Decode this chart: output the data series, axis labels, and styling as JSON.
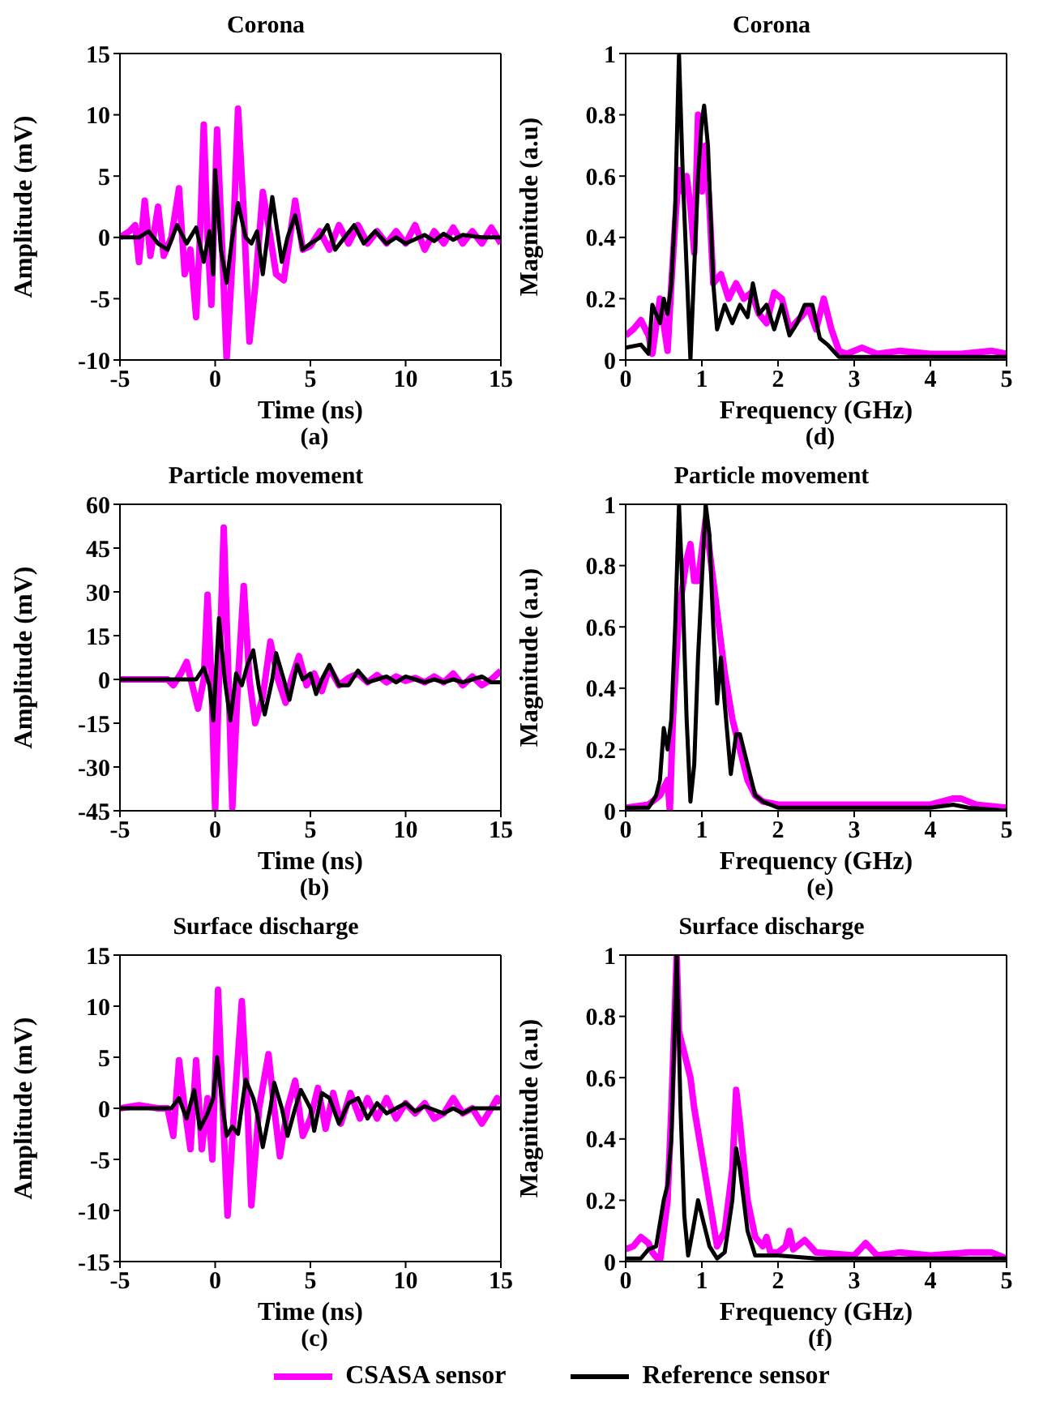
{
  "chart_data": [
    {
      "type": "line",
      "title": "Corona",
      "xlabel": "Time (ns)",
      "ylabel": "Amplitude (mV)",
      "annotations": [
        "(a)"
      ],
      "xlim": [
        -5,
        15
      ],
      "xticks": [
        -5,
        0,
        5,
        10,
        15
      ],
      "ylim": [
        -10,
        15
      ],
      "yticks": [
        -10,
        -5,
        0,
        5,
        10,
        15
      ],
      "legend": "bottom",
      "series": [
        {
          "name": "CSASA sensor",
          "color": "#ff00ff",
          "x": [
            -5,
            -4.5,
            -4.2,
            -4,
            -3.7,
            -3.4,
            -3,
            -2.7,
            -2.3,
            -1.9,
            -1.6,
            -1.3,
            -1,
            -0.8,
            -0.6,
            -0.4,
            -0.2,
            0.1,
            0.4,
            0.6,
            0.9,
            1.2,
            1.5,
            1.8,
            2.1,
            2.5,
            2.9,
            3.2,
            3.6,
            4.2,
            4.6,
            5,
            5.5,
            6,
            6.5,
            7,
            7.5,
            8,
            8.5,
            9,
            9.5,
            10,
            10.5,
            11,
            11.5,
            12,
            12.5,
            13,
            13.5,
            14,
            14.5,
            15
          ],
          "values": [
            0,
            0.5,
            1,
            -2,
            3,
            -1.5,
            2.5,
            -1.5,
            0,
            4,
            -3,
            -1,
            -6.5,
            0,
            9.2,
            0,
            -5.5,
            8.8,
            -2,
            -10,
            -2,
            10.5,
            2,
            -8.5,
            -4,
            3.7,
            0,
            -3,
            -3.5,
            3,
            -1,
            -0.7,
            0.5,
            -1,
            1,
            -0.5,
            1,
            -0.5,
            0.5,
            -0.5,
            0.5,
            -0.5,
            1,
            -1,
            0.5,
            -0.5,
            0.8,
            -0.5,
            0.5,
            -0.5,
            0.8,
            -0.5
          ]
        },
        {
          "name": "Reference sensor",
          "color": "#000000",
          "x": [
            -5,
            -4,
            -3.5,
            -3,
            -2.5,
            -2,
            -1.5,
            -1,
            -0.6,
            -0.3,
            -0.1,
            0,
            0.3,
            0.6,
            0.9,
            1.2,
            1.6,
            1.9,
            2.2,
            2.5,
            3,
            3.5,
            3.8,
            4.2,
            4.6,
            5,
            5.5,
            5.9,
            6.3,
            6.8,
            7.3,
            7.8,
            8.4,
            9,
            9.5,
            10,
            11,
            11.5,
            12,
            12.5,
            13,
            14,
            15
          ],
          "values": [
            0,
            0,
            0.5,
            -0.5,
            -1,
            1,
            -0.5,
            0.8,
            -2,
            0.5,
            -3,
            5.5,
            -1,
            -3.7,
            0,
            2.8,
            0,
            -0.5,
            0.5,
            -3,
            3.3,
            -2,
            0,
            1.8,
            -1,
            -0.5,
            0,
            1,
            -1,
            0,
            1,
            -0.5,
            0.5,
            -0.5,
            0,
            -0.5,
            0.2,
            -0.3,
            0.3,
            -0.2,
            0.2,
            0,
            0
          ]
        }
      ]
    },
    {
      "type": "line",
      "title": "Corona",
      "xlabel": "Frequency (GHz)",
      "ylabel": "Magnitude (a.u)",
      "annotations": [
        "(d)"
      ],
      "xlim": [
        0,
        5
      ],
      "xticks": [
        0,
        1,
        2,
        3,
        4,
        5
      ],
      "ylim": [
        0,
        1
      ],
      "yticks": [
        0,
        0.2,
        0.4,
        0.6,
        0.8,
        1
      ],
      "series": [
        {
          "color": "#ff00ff",
          "x": [
            0,
            0.1,
            0.2,
            0.3,
            0.35,
            0.45,
            0.55,
            0.6,
            0.65,
            0.7,
            0.75,
            0.8,
            0.85,
            0.9,
            0.95,
            1,
            1.05,
            1.1,
            1.15,
            1.25,
            1.35,
            1.45,
            1.55,
            1.65,
            1.75,
            1.85,
            1.95,
            2.05,
            2.15,
            2.3,
            2.4,
            2.5,
            2.6,
            2.7,
            2.8,
            2.9,
            3.1,
            3.3,
            3.6,
            4,
            4.4,
            4.8,
            5
          ],
          "values": [
            0.08,
            0.1,
            0.13,
            0.08,
            0.02,
            0.2,
            0.03,
            0.25,
            0.45,
            0.62,
            0.55,
            0.6,
            0.5,
            0.35,
            0.8,
            0.55,
            0.7,
            0.5,
            0.25,
            0.28,
            0.2,
            0.25,
            0.2,
            0.22,
            0.15,
            0.12,
            0.22,
            0.2,
            0.1,
            0.14,
            0.17,
            0.1,
            0.2,
            0.1,
            0.03,
            0.02,
            0.04,
            0.02,
            0.03,
            0.02,
            0.02,
            0.03,
            0.02
          ]
        },
        {
          "color": "#000000",
          "x": [
            0,
            0.2,
            0.3,
            0.35,
            0.45,
            0.5,
            0.55,
            0.6,
            0.65,
            0.7,
            0.75,
            0.8,
            0.85,
            0.9,
            0.95,
            1,
            1.03,
            1.08,
            1.15,
            1.2,
            1.3,
            1.4,
            1.5,
            1.6,
            1.67,
            1.75,
            1.85,
            1.95,
            2.05,
            2.15,
            2.25,
            2.35,
            2.45,
            2.55,
            2.65,
            2.8,
            3,
            3.5,
            4,
            4.5,
            5
          ],
          "values": [
            0.04,
            0.05,
            0.02,
            0.18,
            0.12,
            0.2,
            0.15,
            0.25,
            0.5,
            1,
            0.6,
            0.3,
            0,
            0.3,
            0.6,
            0.78,
            0.83,
            0.7,
            0.25,
            0.1,
            0.18,
            0.12,
            0.18,
            0.14,
            0.25,
            0.15,
            0.18,
            0.1,
            0.18,
            0.08,
            0.12,
            0.18,
            0.18,
            0.07,
            0.05,
            0.01,
            0.01,
            0.01,
            0.01,
            0.01,
            0.01
          ]
        }
      ]
    },
    {
      "type": "line",
      "title": "Particle movement",
      "xlabel": "Time (ns)",
      "ylabel": "Amplitude (mV)",
      "annotations": [
        "(b)"
      ],
      "xlim": [
        -5,
        15
      ],
      "xticks": [
        -5,
        0,
        5,
        10,
        15
      ],
      "ylim": [
        -45,
        60
      ],
      "yticks": [
        -45,
        -30,
        -15,
        0,
        15,
        30,
        45,
        60
      ],
      "series": [
        {
          "color": "#ff00ff",
          "x": [
            -5,
            -2.5,
            -2.2,
            -1.8,
            -1.5,
            -1.2,
            -0.9,
            -0.6,
            -0.4,
            -0.2,
            0,
            0.2,
            0.45,
            0.7,
            0.9,
            1.2,
            1.5,
            1.8,
            2.1,
            2.5,
            2.9,
            3.3,
            3.7,
            4,
            4.4,
            4.8,
            5.2,
            5.6,
            6,
            6.5,
            7,
            7.5,
            8,
            8.5,
            9,
            9.5,
            10,
            10.5,
            11,
            11.5,
            12,
            12.5,
            13,
            13.5,
            14,
            14.5,
            15
          ],
          "values": [
            0,
            0,
            -2,
            2,
            6,
            -2,
            -10,
            0,
            29,
            0,
            -45,
            0,
            52,
            0,
            -44,
            0,
            32,
            0,
            -15,
            -6,
            13,
            0,
            -8,
            0,
            8,
            -2,
            2,
            -4,
            4,
            -2,
            0.5,
            2,
            -1,
            1.5,
            -1,
            1,
            -0.5,
            0.5,
            -1,
            1,
            -1,
            2,
            -2,
            1,
            -2,
            0,
            3
          ]
        },
        {
          "color": "#000000",
          "x": [
            -5,
            -1,
            -0.6,
            -0.3,
            -0.1,
            0.2,
            0.5,
            0.8,
            1.1,
            1.4,
            1.7,
            2,
            2.3,
            2.6,
            3,
            3.2,
            3.6,
            3.9,
            4.3,
            4.6,
            5,
            5.3,
            5.6,
            6,
            6.5,
            7,
            7.5,
            8,
            8.5,
            9,
            9.5,
            10,
            10.5,
            11,
            11.5,
            12,
            12.5,
            13,
            13.5,
            14,
            14.5,
            15
          ],
          "values": [
            0,
            0,
            4,
            -2,
            -14,
            21,
            0,
            -14,
            2,
            -2,
            5,
            10,
            -3,
            -12,
            0,
            9,
            0,
            -7,
            5,
            0,
            2,
            -5,
            0,
            5,
            -2,
            -2,
            3,
            -1,
            0,
            1,
            -1,
            1,
            0,
            -1,
            0,
            -1,
            0,
            -1,
            0,
            1,
            -1,
            -1
          ]
        }
      ]
    },
    {
      "type": "line",
      "title": "Particle movement",
      "xlabel": "Frequency (GHz)",
      "ylabel": "Magnitude (a.u)",
      "annotations": [
        "(e)"
      ],
      "xlim": [
        0,
        5
      ],
      "xticks": [
        0,
        1,
        2,
        3,
        4,
        5
      ],
      "ylim": [
        0,
        1
      ],
      "yticks": [
        0,
        0.2,
        0.4,
        0.6,
        0.8,
        1
      ],
      "series": [
        {
          "color": "#ff00ff",
          "x": [
            0,
            0.3,
            0.45,
            0.55,
            0.58,
            0.62,
            0.7,
            0.8,
            0.85,
            0.9,
            0.95,
            1.05,
            1.1,
            1.2,
            1.3,
            1.4,
            1.5,
            1.6,
            1.7,
            1.8,
            2,
            2.5,
            3,
            3.5,
            4,
            4.3,
            4.4,
            4.6,
            5
          ],
          "values": [
            0.01,
            0.02,
            0.05,
            0.1,
            0,
            0.3,
            0.65,
            0.82,
            0.87,
            0.75,
            0.75,
            0.95,
            0.85,
            0.65,
            0.45,
            0.3,
            0.2,
            0.1,
            0.05,
            0.03,
            0.02,
            0.02,
            0.02,
            0.02,
            0.02,
            0.04,
            0.04,
            0.02,
            0.01
          ]
        },
        {
          "color": "#000000",
          "x": [
            0,
            0.3,
            0.4,
            0.45,
            0.5,
            0.55,
            0.6,
            0.65,
            0.7,
            0.75,
            0.8,
            0.85,
            0.9,
            0.95,
            1,
            1.05,
            1.1,
            1.15,
            1.2,
            1.25,
            1.3,
            1.38,
            1.45,
            1.5,
            1.6,
            1.7,
            1.8,
            2,
            2.5,
            3,
            3.5,
            4,
            4.3,
            4.5,
            5
          ],
          "values": [
            0.01,
            0.01,
            0.05,
            0.1,
            0.27,
            0.2,
            0.3,
            0.6,
            1,
            0.7,
            0.3,
            0.03,
            0.15,
            0.5,
            0.75,
            1,
            0.9,
            0.6,
            0.35,
            0.5,
            0.35,
            0.12,
            0.25,
            0.25,
            0.15,
            0.05,
            0.03,
            0.01,
            0.01,
            0.01,
            0.01,
            0.01,
            0.02,
            0.01,
            0
          ]
        }
      ]
    },
    {
      "type": "line",
      "title": "Surface discharge",
      "xlabel": "Time (ns)",
      "ylabel": "Amplitude (mV)",
      "annotations": [
        "(c)"
      ],
      "xlim": [
        -5,
        15
      ],
      "xticks": [
        -5,
        0,
        5,
        10,
        15
      ],
      "ylim": [
        -15,
        15
      ],
      "yticks": [
        -15,
        -10,
        -5,
        0,
        5,
        10,
        15
      ],
      "series": [
        {
          "color": "#ff00ff",
          "x": [
            -5,
            -4,
            -3,
            -2.5,
            -2.2,
            -1.9,
            -1.6,
            -1.3,
            -1,
            -0.7,
            -0.4,
            -0.15,
            0.15,
            0.4,
            0.65,
            1,
            1.4,
            1.7,
            1.9,
            2.3,
            2.8,
            3.1,
            3.4,
            3.8,
            4.2,
            4.6,
            5,
            5.4,
            5.8,
            6.2,
            6.6,
            7.1,
            7.6,
            8,
            8.5,
            9,
            9.5,
            10,
            10.5,
            11,
            11.5,
            12,
            12.5,
            13,
            13.5,
            14,
            14.5,
            14.8,
            15
          ],
          "values": [
            0,
            0.3,
            0,
            0,
            -2.7,
            4.7,
            0,
            -4,
            4.7,
            -4,
            1,
            -5,
            11.6,
            0,
            -10.5,
            0,
            10.5,
            0,
            -9.5,
            0,
            5.3,
            0,
            -4.7,
            0,
            2.7,
            -2.7,
            -1,
            2,
            -2,
            1.5,
            -1.5,
            1.5,
            -1,
            1,
            -1,
            1,
            -1,
            0.5,
            -0.5,
            0.5,
            -1,
            -0.5,
            1,
            -0.5,
            0,
            -1.5,
            0,
            1,
            0.5
          ]
        },
        {
          "color": "#000000",
          "x": [
            -5,
            -3,
            -2.3,
            -1.9,
            -1.5,
            -1.1,
            -0.8,
            -0.4,
            -0.1,
            0.1,
            0.4,
            0.6,
            0.9,
            1.2,
            1.6,
            2,
            2.2,
            2.5,
            2.9,
            3.1,
            3.5,
            3.8,
            4.2,
            4.5,
            5,
            5.2,
            5.6,
            6,
            6.5,
            7,
            7.5,
            8,
            8.5,
            9,
            9.5,
            10,
            10.5,
            11,
            12,
            12.5,
            13,
            13.5,
            14,
            15
          ],
          "values": [
            0,
            0,
            0,
            1,
            -1,
            1.8,
            -2,
            -0.5,
            1,
            5,
            0,
            -2.7,
            -1.8,
            -2.5,
            2.8,
            1,
            -0.5,
            -3.8,
            0,
            2.5,
            0,
            -2.7,
            0,
            1.8,
            0,
            -2.2,
            1.5,
            1,
            -1.5,
            0.5,
            1,
            -1,
            0.5,
            -0.5,
            0,
            0.5,
            -0.3,
            0.2,
            -0.5,
            0,
            -0.5,
            0,
            0,
            0
          ]
        }
      ]
    },
    {
      "type": "line",
      "title": "Surface discharge",
      "xlabel": "Frequency (GHz)",
      "ylabel": "Magnitude (a.u)",
      "annotations": [
        "(f)"
      ],
      "xlim": [
        0,
        5
      ],
      "xticks": [
        0,
        1,
        2,
        3,
        4,
        5
      ],
      "ylim": [
        0,
        1
      ],
      "yticks": [
        0,
        0.2,
        0.4,
        0.6,
        0.8,
        1
      ],
      "series": [
        {
          "color": "#ff00ff",
          "x": [
            0,
            0.1,
            0.2,
            0.3,
            0.35,
            0.45,
            0.5,
            0.55,
            0.6,
            0.67,
            0.7,
            0.75,
            0.8,
            0.85,
            0.9,
            1,
            1.1,
            1.2,
            1.3,
            1.4,
            1.45,
            1.5,
            1.6,
            1.7,
            1.8,
            1.85,
            1.9,
            2,
            2.1,
            2.15,
            2.2,
            2.35,
            2.5,
            3,
            3.15,
            3.3,
            3.6,
            4,
            4.5,
            4.8,
            5
          ],
          "values": [
            0.04,
            0.05,
            0.08,
            0.06,
            0.03,
            0,
            0.1,
            0.2,
            0.5,
            1,
            0.75,
            0.7,
            0.65,
            0.6,
            0.5,
            0.35,
            0.2,
            0.05,
            0.1,
            0.3,
            0.56,
            0.45,
            0.2,
            0.08,
            0.05,
            0.08,
            0.03,
            0.03,
            0.05,
            0.1,
            0.04,
            0.07,
            0.03,
            0.02,
            0.06,
            0.02,
            0.03,
            0.02,
            0.03,
            0.03,
            0.01
          ]
        },
        {
          "color": "#000000",
          "x": [
            0,
            0.2,
            0.3,
            0.4,
            0.5,
            0.55,
            0.6,
            0.67,
            0.72,
            0.77,
            0.82,
            0.88,
            0.95,
            1,
            1.1,
            1.2,
            1.3,
            1.4,
            1.45,
            1.5,
            1.6,
            1.7,
            2,
            2.5,
            3,
            4,
            5
          ],
          "values": [
            0.01,
            0.01,
            0.04,
            0.05,
            0.2,
            0.25,
            0.4,
            1,
            0.5,
            0.15,
            0.02,
            0.1,
            0.2,
            0.15,
            0.05,
            0.01,
            0.03,
            0.2,
            0.37,
            0.3,
            0.1,
            0.02,
            0.02,
            0.01,
            0.01,
            0.01,
            0.01
          ]
        }
      ]
    }
  ]
}
